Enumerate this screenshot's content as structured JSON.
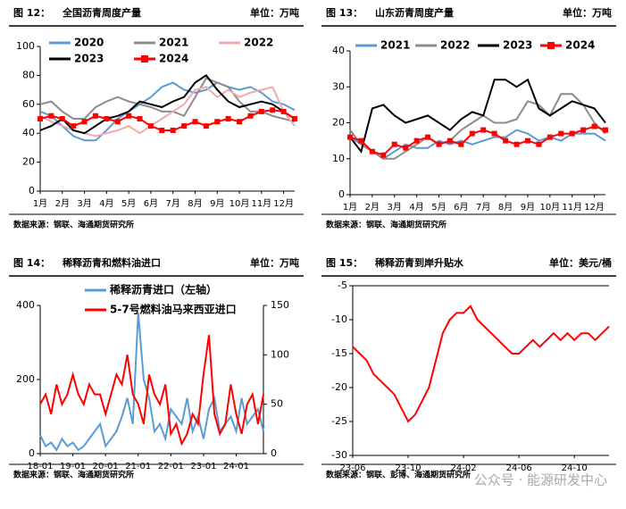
{
  "chart_data": [
    {
      "type": "line",
      "figure": "图 12：",
      "title": "全国沥青周度产量",
      "unit": "单位：万吨",
      "source": "数据来源：钢联、海通期货研究所",
      "categories": [
        "1月",
        null,
        "2月",
        null,
        "3月",
        null,
        "4月",
        null,
        "5月",
        null,
        "6月",
        null,
        "7月",
        null,
        "8月",
        null,
        "9月",
        null,
        "10月",
        null,
        "11月",
        null,
        "12月",
        null
      ],
      "ylim": [
        0,
        100
      ],
      "yticks": [
        0,
        20,
        40,
        60,
        80,
        100
      ],
      "series": [
        {
          "name": "2020",
          "color": "#5b9bd5",
          "values": [
            55,
            52,
            45,
            38,
            35,
            35,
            42,
            50,
            55,
            60,
            65,
            72,
            75,
            70,
            68,
            70,
            75,
            72,
            70,
            72,
            68,
            62,
            60,
            56
          ]
        },
        {
          "name": "2021",
          "color": "#8c8c8c",
          "values": [
            60,
            62,
            55,
            50,
            50,
            58,
            62,
            65,
            62,
            60,
            58,
            55,
            55,
            52,
            65,
            78,
            75,
            72,
            62,
            55,
            55,
            52,
            50,
            48
          ]
        },
        {
          "name": "2022",
          "color": "#f2a9a9",
          "values": [
            52,
            48,
            45,
            42,
            40,
            38,
            40,
            42,
            45,
            40,
            45,
            50,
            55,
            60,
            70,
            72,
            65,
            70,
            65,
            68,
            70,
            72,
            55,
            45
          ]
        },
        {
          "name": "2023",
          "color": "#000000",
          "values": [
            42,
            45,
            50,
            42,
            40,
            45,
            50,
            52,
            55,
            62,
            60,
            58,
            62,
            65,
            75,
            80,
            70,
            62,
            58,
            60,
            62,
            60,
            55,
            50
          ]
        },
        {
          "name": "2024",
          "color": "#ff0000",
          "marker": "square",
          "values": [
            50,
            52,
            50,
            45,
            48,
            52,
            50,
            48,
            52,
            50,
            45,
            42,
            42,
            45,
            48,
            45,
            48,
            50,
            48,
            52,
            55,
            56,
            55,
            50
          ]
        }
      ]
    },
    {
      "type": "line",
      "figure": "图 13：",
      "title": "山东沥青周度产量",
      "unit": "单位：万吨",
      "source": "数据来源：钢联、海通期货研究所",
      "categories": [
        "1月",
        null,
        "2月",
        null,
        "3月",
        null,
        "4月",
        null,
        "5月",
        null,
        "6月",
        null,
        "7月",
        null,
        "8月",
        null,
        "9月",
        null,
        "10月",
        null,
        "11月",
        null,
        "12月",
        null
      ],
      "ylim": [
        0,
        40
      ],
      "yticks": [
        0,
        10,
        20,
        30,
        40
      ],
      "series": [
        {
          "name": "2021",
          "color": "#5b9bd5",
          "values": [
            16,
            14,
            12,
            10,
            12,
            14,
            13,
            13,
            15,
            14,
            15,
            14,
            15,
            16,
            16,
            18,
            17,
            15,
            16,
            15,
            17,
            17,
            17,
            15
          ]
        },
        {
          "name": "2022",
          "color": "#8c8c8c",
          "values": [
            18,
            14,
            12,
            10,
            10,
            12,
            14,
            16,
            14,
            15,
            18,
            20,
            22,
            20,
            20,
            21,
            26,
            25,
            22,
            28,
            28,
            25,
            20,
            17
          ]
        },
        {
          "name": "2023",
          "color": "#000000",
          "values": [
            16,
            12,
            24,
            25,
            22,
            20,
            21,
            22,
            20,
            18,
            21,
            23,
            22,
            32,
            32,
            30,
            32,
            24,
            22,
            24,
            26,
            25,
            24,
            20
          ]
        },
        {
          "name": "2024",
          "color": "#ff0000",
          "marker": "square",
          "values": [
            16,
            15,
            12,
            11,
            14,
            13,
            15,
            16,
            14,
            15,
            14,
            17,
            18,
            17,
            15,
            14,
            15,
            14,
            16,
            17,
            17,
            18,
            19,
            18
          ]
        }
      ]
    },
    {
      "type": "line",
      "figure": "图 14：",
      "title": "稀释沥青和燃料油进口",
      "unit": "单位：万吨",
      "source": "数据来源：钢联、海通期货研究所",
      "categories": [
        "18-01",
        null,
        null,
        null,
        null,
        null,
        "19-01",
        null,
        null,
        null,
        null,
        null,
        "20-01",
        null,
        null,
        null,
        null,
        null,
        "21-01",
        null,
        null,
        null,
        null,
        null,
        "22-01",
        null,
        null,
        null,
        null,
        null,
        "23-01",
        null,
        null,
        null,
        null,
        null,
        "24-01",
        null,
        null,
        null,
        null,
        null
      ],
      "ylim": [
        0,
        400
      ],
      "yticks": [
        0,
        200,
        400
      ],
      "y2lim": [
        0,
        150
      ],
      "y2ticks": [
        0,
        50,
        100,
        150
      ],
      "series": [
        {
          "name": "稀释沥青进口（左轴）",
          "color": "#5b9bd5",
          "values": [
            50,
            20,
            30,
            10,
            40,
            20,
            30,
            10,
            20,
            40,
            60,
            80,
            20,
            40,
            60,
            100,
            150,
            80,
            380,
            200,
            150,
            60,
            80,
            40,
            120,
            100,
            80,
            150,
            60,
            100,
            40,
            120,
            150,
            60,
            80,
            100,
            60,
            150,
            80,
            100,
            120,
            60
          ]
        },
        {
          "name": "5-7号燃料油马来西亚进口",
          "color": "#ff0000",
          "axis": "y2",
          "values": [
            50,
            60,
            40,
            70,
            50,
            60,
            80,
            60,
            50,
            70,
            60,
            60,
            40,
            60,
            80,
            70,
            100,
            60,
            50,
            30,
            80,
            60,
            50,
            70,
            20,
            30,
            10,
            20,
            40,
            30,
            80,
            120,
            40,
            20,
            30,
            70,
            40,
            20,
            50,
            60,
            30,
            60
          ]
        }
      ]
    },
    {
      "type": "line",
      "figure": "图 15：",
      "title": "稀释沥青到岸升贴水",
      "unit": "单位：美元/桶",
      "source": "数据来源：钢联、彭博、海通期货研究所",
      "watermark": "公众号 · 能源研发中心",
      "categories": [
        "23-06",
        null,
        null,
        null,
        null,
        null,
        null,
        null,
        "23-10",
        null,
        null,
        null,
        null,
        null,
        null,
        null,
        "24-02",
        null,
        null,
        null,
        null,
        null,
        null,
        null,
        "24-06",
        null,
        null,
        null,
        null,
        null,
        null,
        null,
        "24-10",
        null,
        null,
        null,
        null,
        null
      ],
      "ylim": [
        -30,
        -5
      ],
      "yticks": [
        -30,
        -25,
        -20,
        -15,
        -10,
        -5
      ],
      "series": [
        {
          "color": "#ff0000",
          "values": [
            -14,
            -15,
            -16,
            -18,
            -19,
            -20,
            -21,
            -23,
            -25,
            -24,
            -22,
            -20,
            -16,
            -12,
            -10,
            -9,
            -9,
            -8,
            -10,
            -11,
            -12,
            -13,
            -14,
            -15,
            -15,
            -14,
            -13,
            -14,
            -13,
            -12,
            -13,
            -12,
            -13,
            -12,
            -12,
            -13,
            -12,
            -11
          ]
        }
      ]
    }
  ]
}
